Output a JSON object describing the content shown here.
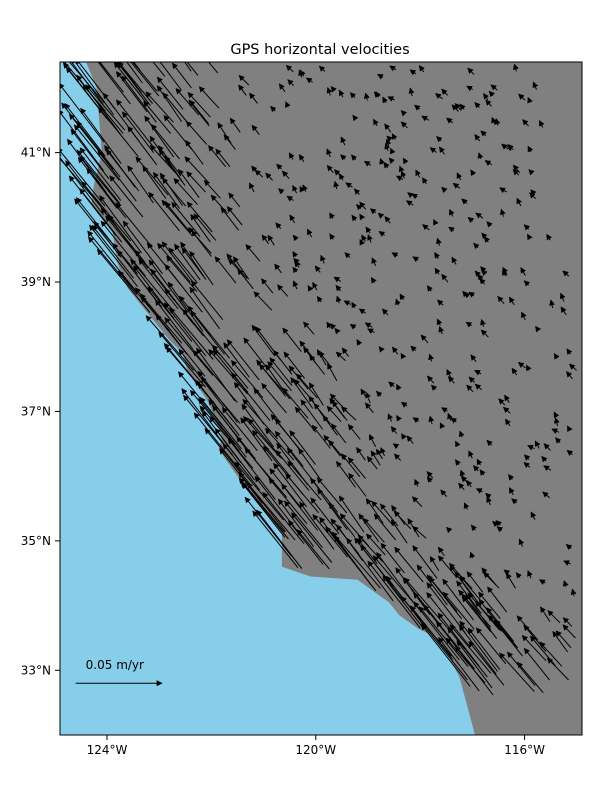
{
  "title": "GPS horizontal velocities",
  "x_ticks": [
    {
      "label": "124°W",
      "lon": -124
    },
    {
      "label": "120°W",
      "lon": -120
    },
    {
      "label": "116°W",
      "lon": -116
    }
  ],
  "y_ticks": [
    {
      "label": "41°N",
      "lat": 41
    },
    {
      "label": "39°N",
      "lat": 39
    },
    {
      "label": "37°N",
      "lat": 37
    },
    {
      "label": "35°N",
      "lat": 35
    },
    {
      "label": "33°N",
      "lat": 33
    }
  ],
  "scale": {
    "label": "0.05 m/yr",
    "value_m_per_yr": 0.05
  },
  "colors": {
    "ocean": "#87ceeb",
    "land": "#808080",
    "arrow": "#000000",
    "frame": "#000000"
  },
  "map_data": {
    "extent": {
      "lon_min": -124.9,
      "lon_max": -114.9,
      "lat_min": 32.0,
      "lat_max": 42.4
    },
    "coastline": [
      [
        -124.4,
        42.4
      ],
      [
        -124.2,
        42.0
      ],
      [
        -124.15,
        41.5
      ],
      [
        -124.1,
        41.0
      ],
      [
        -124.25,
        40.5
      ],
      [
        -124.3,
        40.2
      ],
      [
        -123.9,
        39.8
      ],
      [
        -123.8,
        39.3
      ],
      [
        -123.6,
        38.9
      ],
      [
        -123.2,
        38.5
      ],
      [
        -122.8,
        38.1
      ],
      [
        -122.55,
        37.9
      ],
      [
        -122.45,
        37.6
      ],
      [
        -122.1,
        37.2
      ],
      [
        -121.95,
        36.95
      ],
      [
        -121.8,
        36.6
      ],
      [
        -121.85,
        36.4
      ],
      [
        -121.5,
        36.0
      ],
      [
        -121.2,
        35.7
      ],
      [
        -120.9,
        35.4
      ],
      [
        -120.65,
        35.1
      ],
      [
        -120.65,
        34.6
      ],
      [
        -120.1,
        34.45
      ],
      [
        -119.2,
        34.4
      ],
      [
        -118.6,
        34.05
      ],
      [
        -118.4,
        33.85
      ],
      [
        -118.05,
        33.65
      ],
      [
        -117.8,
        33.55
      ],
      [
        -117.45,
        33.2
      ],
      [
        -117.25,
        32.9
      ],
      [
        -117.15,
        32.6
      ],
      [
        -116.95,
        32.0
      ]
    ],
    "scale_arrow": {
      "lon": -124.6,
      "lat": 32.8
    },
    "vectors": []
  }
}
